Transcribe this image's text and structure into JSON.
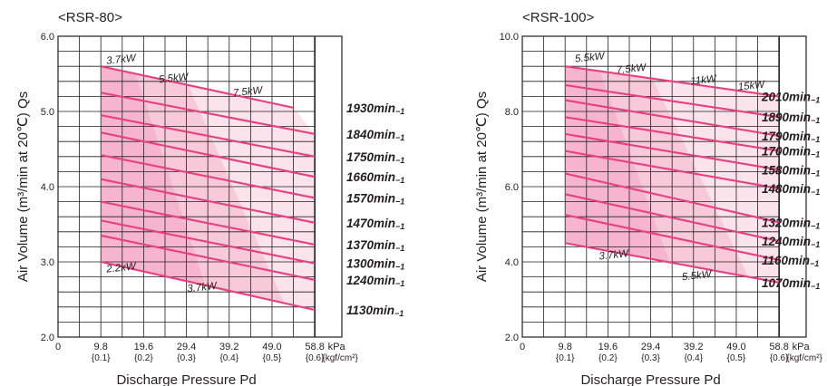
{
  "chart_data": [
    {
      "type": "line",
      "title": "<RSR-80>",
      "xlabel": "Discharge Pressure Pd",
      "ylabel": "Air Volume (m³/min at 20℃) Qs",
      "x_unit": "kPa",
      "x_unit_sub": "{kgf/cm²}",
      "xlim": [
        0,
        65
      ],
      "ylim": [
        2.0,
        6.0
      ],
      "y_ticks": [
        "2.0",
        "3.0",
        "4.0",
        "5.0",
        "6.0"
      ],
      "x_ticks": [
        {
          "value": 0,
          "label": "0",
          "sub": ""
        },
        {
          "value": 9.8,
          "label": "9.8",
          "sub": "{0.1}"
        },
        {
          "value": 19.6,
          "label": "19.6",
          "sub": "{0.2}"
        },
        {
          "value": 29.4,
          "label": "29.4",
          "sub": "{0.3}"
        },
        {
          "value": 39.2,
          "label": "39.2",
          "sub": "{0.4}"
        },
        {
          "value": 49.0,
          "label": "49.0",
          "sub": "{0.5}"
        },
        {
          "value": 58.8,
          "label": "58.8",
          "sub": "{0.6}"
        }
      ],
      "grid": true,
      "series": [
        {
          "name": "1930min",
          "x": [
            9.8,
            53.9
          ],
          "y": [
            5.6,
            5.05
          ]
        },
        {
          "name": "1840min",
          "x": [
            9.8,
            58.8
          ],
          "y": [
            5.25,
            4.7
          ]
        },
        {
          "name": "1750min",
          "x": [
            9.8,
            58.8
          ],
          "y": [
            4.95,
            4.4
          ]
        },
        {
          "name": "1660min",
          "x": [
            9.8,
            58.8
          ],
          "y": [
            4.72,
            4.13
          ]
        },
        {
          "name": "1570min",
          "x": [
            9.8,
            58.8
          ],
          "y": [
            4.42,
            3.85
          ]
        },
        {
          "name": "1470min",
          "x": [
            9.8,
            58.8
          ],
          "y": [
            4.1,
            3.52
          ]
        },
        {
          "name": "1370min",
          "x": [
            9.8,
            58.8
          ],
          "y": [
            3.8,
            3.23
          ]
        },
        {
          "name": "1300min",
          "x": [
            9.8,
            58.8
          ],
          "y": [
            3.55,
            2.98
          ]
        },
        {
          "name": "1240min",
          "x": [
            9.8,
            58.8
          ],
          "y": [
            3.35,
            2.76
          ]
        },
        {
          "name": "1130min",
          "x": [
            9.8,
            58.8
          ],
          "y": [
            3.0,
            2.36
          ]
        }
      ],
      "power_labels": [
        {
          "text": "3.7kW",
          "x": 14.5,
          "y": 5.65
        },
        {
          "text": "5.5kW",
          "x": 26.5,
          "y": 5.4
        },
        {
          "text": "7.5kW",
          "x": 43.5,
          "y": 5.22
        },
        {
          "text": "2.2kW",
          "x": 14.5,
          "y": 2.88
        },
        {
          "text": "3.7kW",
          "x": 33.0,
          "y": 2.62
        }
      ],
      "speed_unit_sub": "−1",
      "shade": "#f4a6c1"
    },
    {
      "type": "line",
      "title": "<RSR-100>",
      "xlabel": "Discharge Pressure Pd",
      "ylabel": "Air Volume (m³/min at 20℃) Qs",
      "x_unit": "kPa",
      "x_unit_sub": "{kgf/cm²}",
      "xlim": [
        0,
        65
      ],
      "ylim": [
        2.0,
        10.0
      ],
      "y_ticks": [
        "2.0",
        "4.0",
        "6.0",
        "8.0",
        "10.0"
      ],
      "x_ticks": [
        {
          "value": 0,
          "label": "0",
          "sub": ""
        },
        {
          "value": 9.8,
          "label": "9.8",
          "sub": "{0.1}"
        },
        {
          "value": 19.6,
          "label": "19.6",
          "sub": "{0.2}"
        },
        {
          "value": 29.4,
          "label": "29.4",
          "sub": "{0.3}"
        },
        {
          "value": 39.2,
          "label": "39.2",
          "sub": "{0.4}"
        },
        {
          "value": 49.0,
          "label": "49.0",
          "sub": "{0.5}"
        },
        {
          "value": 58.8,
          "label": "58.8",
          "sub": "{0.6}"
        }
      ],
      "grid": true,
      "series": [
        {
          "name": "2010min",
          "x": [
            9.8,
            58.8
          ],
          "y": [
            9.2,
            8.4
          ]
        },
        {
          "name": "1890min",
          "x": [
            9.8,
            58.8
          ],
          "y": [
            8.7,
            7.85
          ]
        },
        {
          "name": "1790min",
          "x": [
            9.8,
            58.8
          ],
          "y": [
            8.3,
            7.35
          ]
        },
        {
          "name": "1700min",
          "x": [
            9.8,
            58.8
          ],
          "y": [
            7.85,
            6.95
          ]
        },
        {
          "name": "1580min",
          "x": [
            9.8,
            58.8
          ],
          "y": [
            7.4,
            6.45
          ]
        },
        {
          "name": "1480min",
          "x": [
            9.8,
            58.8
          ],
          "y": [
            6.95,
            5.95
          ]
        },
        {
          "name": "1320min",
          "x": [
            9.8,
            58.8
          ],
          "y": [
            6.35,
            5.05
          ]
        },
        {
          "name": "1240min",
          "x": [
            9.8,
            58.8
          ],
          "y": [
            5.8,
            4.55
          ]
        },
        {
          "name": "1160min",
          "x": [
            9.8,
            58.8
          ],
          "y": [
            5.25,
            4.05
          ]
        },
        {
          "name": "1070min",
          "x": [
            9.8,
            58.8
          ],
          "y": [
            4.5,
            3.45
          ]
        }
      ],
      "power_labels": [
        {
          "text": "5.5kW",
          "x": 15.5,
          "y": 9.35
        },
        {
          "text": "7.5kW",
          "x": 25.0,
          "y": 9.05
        },
        {
          "text": "11kW",
          "x": 41.5,
          "y": 8.75
        },
        {
          "text": "15kW",
          "x": 52.5,
          "y": 8.6
        },
        {
          "text": "3.7kW",
          "x": 21.0,
          "y": 4.1
        },
        {
          "text": "5.5kW",
          "x": 40.0,
          "y": 3.55
        }
      ],
      "speed_unit_sub": "−1",
      "shade": "#f4a6c1"
    }
  ]
}
